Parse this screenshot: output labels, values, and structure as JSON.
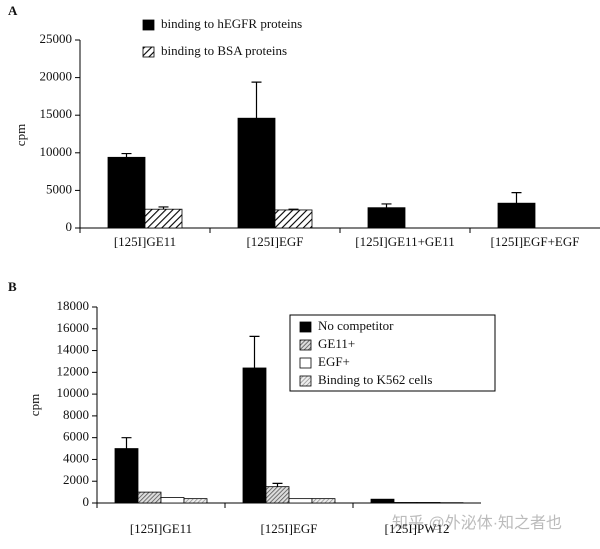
{
  "watermark": "知乎 @外泌体·知之者也",
  "chart_data": [
    {
      "type": "bar",
      "panel": "A",
      "y_label": "cpm",
      "categories": [
        "[125I]GE11",
        "[125I]EGF",
        "[125I]GE11+GE11",
        "[125I]EGF+EGF"
      ],
      "series": [
        {
          "name": "binding to hEGFR proteins",
          "color": "#000000",
          "hatch": "none",
          "values": [
            9400,
            14600,
            2700,
            3300
          ],
          "errors": [
            500,
            4800,
            500,
            1400
          ]
        },
        {
          "name": "binding to BSA proteins",
          "color": "#000000",
          "hatch": "light",
          "values": [
            2500,
            2400,
            null,
            null
          ],
          "errors": [
            300,
            100,
            null,
            null
          ]
        }
      ],
      "ylim": [
        0,
        25000
      ],
      "yticks": [
        0,
        5000,
        10000,
        15000,
        20000,
        25000
      ],
      "legend": "top-left"
    },
    {
      "type": "bar",
      "panel": "B",
      "y_label": "cpm",
      "categories": [
        "[125I]GE11",
        "[125I]EGF",
        "[125I]PW12"
      ],
      "series": [
        {
          "name": "No competitor",
          "color": "#000000",
          "hatch": "none",
          "values": [
            5000,
            12400,
            350
          ],
          "errors": [
            1000,
            2900,
            null
          ]
        },
        {
          "name": "GE11+",
          "color": "#555555",
          "hatch": "dense",
          "values": [
            1000,
            1500,
            50
          ],
          "errors": [
            null,
            300,
            null
          ]
        },
        {
          "name": "EGF+",
          "color": "#ffffff",
          "hatch": "none",
          "values": [
            500,
            400,
            50
          ],
          "errors": [
            null,
            null,
            null
          ]
        },
        {
          "name": "Binding to K562 cells",
          "color": "#888888",
          "hatch": "dense",
          "values": [
            400,
            400,
            30
          ],
          "errors": [
            null,
            null,
            null
          ]
        }
      ],
      "ylim": [
        0,
        18000
      ],
      "yticks": [
        0,
        2000,
        4000,
        6000,
        8000,
        10000,
        12000,
        14000,
        16000,
        18000
      ],
      "legend": "top-right"
    }
  ]
}
